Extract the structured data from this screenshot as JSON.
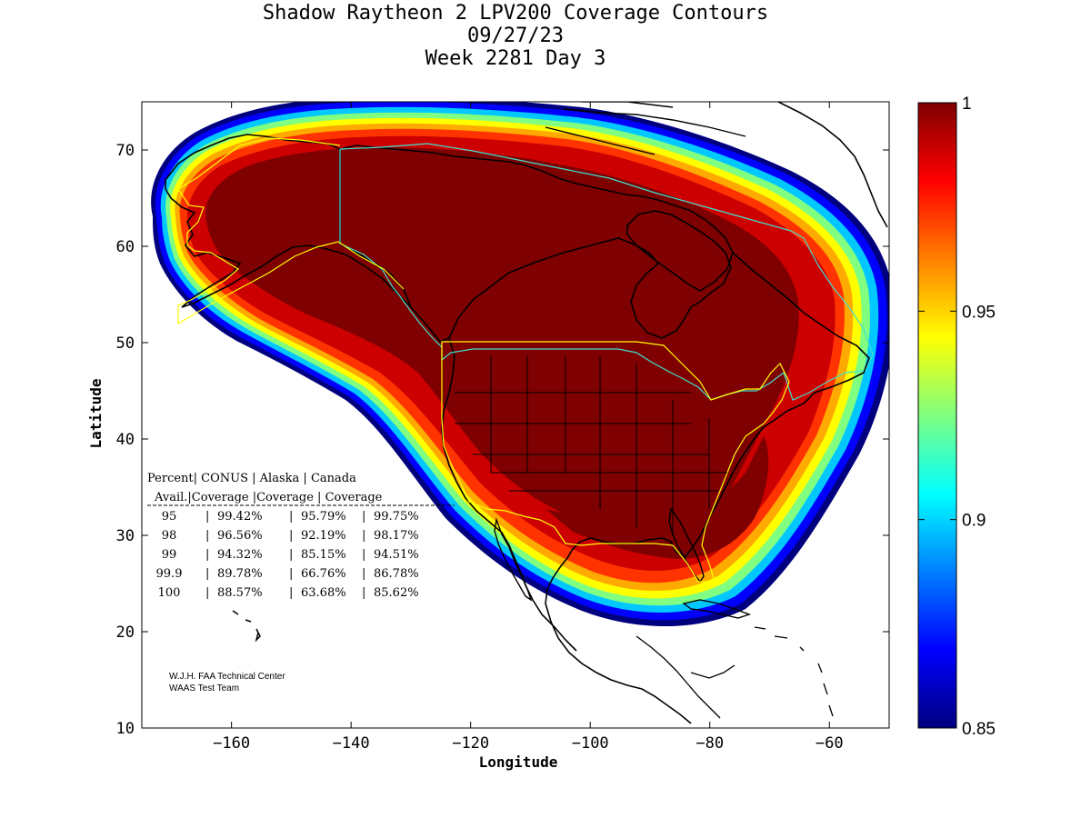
{
  "title": {
    "line1": "Shadow Raytheon 2 LPV200 Coverage Contours",
    "line2": "09/27/23",
    "line3": "Week 2281 Day 3"
  },
  "axes": {
    "xlabel": "Longitude",
    "ylabel": "Latitude",
    "xlim": [
      -175,
      -50
    ],
    "ylim": [
      10,
      75
    ],
    "xticks": [
      -160,
      -140,
      -120,
      -100,
      -80,
      -60
    ],
    "yticks": [
      10,
      20,
      30,
      40,
      50,
      60,
      70
    ]
  },
  "colorbar": {
    "min": 0.85,
    "max": 1,
    "tick_values": [
      0.85,
      0.9,
      0.95,
      1
    ],
    "tick_labels": [
      "0.85",
      "0.9",
      "0.95",
      "1"
    ],
    "colormap": "jet"
  },
  "stats_table": {
    "header1": [
      "Percent",
      "CONUS",
      "Alaska",
      "Canada"
    ],
    "header2": [
      "Avail.",
      "Coverage",
      "Coverage",
      "Coverage"
    ],
    "rows": [
      [
        "95",
        "99.42%",
        "95.79%",
        "99.75%"
      ],
      [
        "98",
        "96.56%",
        "92.19%",
        "98.17%"
      ],
      [
        "99",
        "94.32%",
        "85.15%",
        "94.51%"
      ],
      [
        "99.9",
        "89.78%",
        "66.76%",
        "86.78%"
      ],
      [
        "100",
        "88.57%",
        "63.68%",
        "85.62%"
      ]
    ]
  },
  "credit": {
    "line1": "W.J.H. FAA Technical Center",
    "line2": "WAAS Test Team"
  },
  "chart_data": {
    "type": "heatmap",
    "title": "Shadow Raytheon 2 LPV200 Coverage Contours",
    "xlabel": "Longitude",
    "ylabel": "Latitude",
    "xlim": [
      -175,
      -50
    ],
    "ylim": [
      10,
      75
    ],
    "value_range": [
      0.85,
      1
    ],
    "core_value": 1.0,
    "description_levels": [
      0.85,
      0.9,
      0.95,
      1.0
    ]
  },
  "colors": {
    "ocean": "#ffffff",
    "coast": "#000000",
    "service_boundary": "#ffff00",
    "alaska_canada_boundary": "#40e0d0"
  }
}
